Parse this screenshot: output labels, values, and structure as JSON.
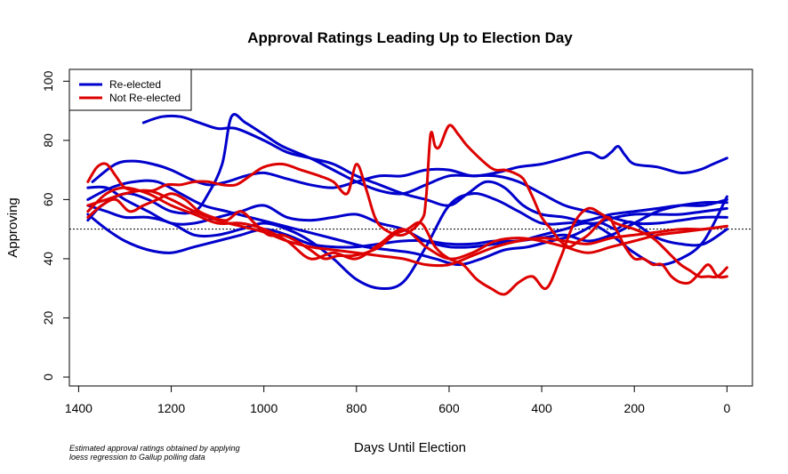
{
  "chart_data": {
    "type": "line",
    "title": "Approval Ratings Leading Up to Election Day",
    "xlabel": "Days Until Election",
    "ylabel": "Approving",
    "xlim": [
      1420,
      -55
    ],
    "ylim": [
      -3,
      104
    ],
    "x_ticks": [
      1400,
      1200,
      1000,
      800,
      600,
      400,
      200,
      0
    ],
    "y_ticks": [
      0,
      20,
      40,
      60,
      80,
      100
    ],
    "reference_line": {
      "y": 50,
      "style": "dotted"
    },
    "grid": false,
    "legend": {
      "position": "top-left",
      "entries": [
        {
          "label": "Re-elected",
          "color": "#0000cc"
        },
        {
          "label": "Not Re-elected",
          "color": "#dd0000"
        }
      ]
    },
    "series": [
      {
        "group": "Re-elected",
        "color": "#0000cc",
        "x": [
          1260,
          1220,
          1180,
          1140,
          1100,
          1060,
          1000,
          950,
          900,
          850,
          800,
          750,
          700,
          650,
          600,
          560,
          520,
          480,
          440,
          400,
          350,
          300,
          270,
          240,
          220,
          200,
          150,
          100,
          50,
          0
        ],
        "y": [
          86,
          88,
          88,
          86,
          84,
          84,
          80,
          76,
          74,
          72,
          68,
          65,
          62,
          60,
          58,
          62,
          66,
          64,
          58,
          55,
          54,
          52,
          52,
          50,
          52,
          52,
          47,
          45,
          45,
          50
        ]
      },
      {
        "group": "Re-elected",
        "color": "#0000cc",
        "x": [
          1380,
          1350,
          1300,
          1250,
          1200,
          1150,
          1120,
          1090,
          1070,
          1040,
          1000,
          960,
          900,
          850,
          800,
          750,
          700,
          650,
          600,
          550,
          500,
          450,
          400,
          350,
          300,
          250,
          200,
          150,
          100,
          50,
          0
        ],
        "y": [
          53,
          58,
          62,
          60,
          56,
          56,
          62,
          72,
          88,
          86,
          82,
          78,
          74,
          70,
          66,
          63,
          62,
          65,
          68,
          68,
          68,
          66,
          62,
          58,
          56,
          54,
          52,
          52,
          53,
          54,
          54
        ]
      },
      {
        "group": "Re-elected",
        "color": "#0000cc",
        "x": [
          1380,
          1340,
          1300,
          1250,
          1200,
          1150,
          1100,
          1050,
          1000,
          950,
          900,
          850,
          800,
          750,
          700,
          650,
          600,
          550,
          500,
          450,
          400,
          350,
          300,
          250,
          200,
          150,
          100,
          50,
          0
        ],
        "y": [
          64,
          64,
          60,
          56,
          52,
          52,
          54,
          56,
          58,
          54,
          53,
          54,
          55,
          52,
          50,
          46,
          44,
          44,
          45,
          46,
          47,
          48,
          46,
          48,
          52,
          56,
          58,
          59,
          59
        ]
      },
      {
        "group": "Re-elected",
        "color": "#0000cc",
        "x": [
          1380,
          1340,
          1300,
          1250,
          1200,
          1150,
          1100,
          1050,
          1000,
          950,
          900,
          850,
          800,
          750,
          700,
          650,
          600,
          550,
          500,
          450,
          400,
          350,
          300,
          250,
          200,
          150,
          100,
          50,
          0
        ],
        "y": [
          58,
          56,
          54,
          54,
          52,
          48,
          48,
          50,
          52,
          50,
          46,
          40,
          33,
          30,
          32,
          44,
          58,
          62,
          60,
          56,
          52,
          52,
          53,
          55,
          56,
          57,
          58,
          58,
          60
        ]
      },
      {
        "group": "Re-elected",
        "color": "#0000cc",
        "x": [
          1380,
          1340,
          1300,
          1250,
          1200,
          1150,
          1100,
          1050,
          1000,
          950,
          900,
          850,
          800,
          750,
          700,
          650,
          600,
          550,
          500,
          450,
          400,
          350,
          300,
          250,
          200,
          150,
          100,
          50,
          0
        ],
        "y": [
          55,
          50,
          46,
          43,
          42,
          44,
          46,
          48,
          50,
          48,
          45,
          44,
          44,
          45,
          46,
          46,
          45,
          45,
          46,
          46,
          48,
          50,
          52,
          48,
          42,
          38,
          40,
          46,
          61
        ]
      },
      {
        "group": "Re-elected",
        "color": "#0000cc",
        "x": [
          1380,
          1330,
          1280,
          1230,
          1180,
          1130,
          1080,
          1030,
          980,
          930,
          880,
          830,
          780,
          730,
          680,
          630,
          580,
          530,
          480,
          430,
          380,
          330,
          280,
          240,
          200,
          150,
          100,
          50,
          0
        ],
        "y": [
          60,
          64,
          66,
          66,
          62,
          58,
          56,
          54,
          52,
          50,
          48,
          46,
          44,
          43,
          42,
          40,
          38,
          40,
          43,
          44,
          46,
          48,
          52,
          54,
          55,
          55,
          55,
          56,
          57
        ]
      },
      {
        "group": "Re-elected",
        "color": "#0000cc",
        "x": [
          1370,
          1320,
          1280,
          1240,
          1200,
          1160,
          1120,
          1080,
          1040,
          1000,
          950,
          900,
          850,
          800,
          750,
          700,
          650,
          600,
          550,
          500,
          450,
          400,
          350,
          300,
          270,
          250,
          235,
          220,
          200,
          150,
          100,
          60,
          30,
          0
        ],
        "y": [
          66,
          72,
          73,
          72,
          70,
          67,
          65,
          66,
          68,
          69,
          67,
          65,
          64,
          66,
          68,
          68,
          70,
          70,
          68,
          69,
          71,
          72,
          74,
          76,
          74,
          76,
          78,
          75,
          72,
          71,
          69,
          70,
          72,
          74
        ]
      },
      {
        "group": "Not Re-elected",
        "color": "#dd0000",
        "x": [
          1380,
          1360,
          1340,
          1320,
          1300,
          1270,
          1240,
          1210,
          1180,
          1150,
          1120,
          1090,
          1060,
          1030,
          1000,
          960,
          920,
          880,
          850,
          820,
          800,
          780,
          760,
          740,
          700,
          660,
          650,
          640,
          630,
          620,
          600,
          580,
          560,
          520,
          500,
          480,
          460,
          440,
          420,
          400,
          380,
          360,
          340,
          320,
          300,
          260,
          240,
          220,
          200,
          180,
          160,
          140,
          120,
          100,
          80,
          60,
          40,
          20,
          0
        ],
        "y": [
          66,
          71,
          72,
          68,
          64,
          63,
          63,
          65,
          65,
          66,
          66,
          65,
          65,
          68,
          71,
          72,
          70,
          68,
          66,
          62,
          72,
          64,
          54,
          50,
          48,
          53,
          60,
          82,
          78,
          78,
          85,
          82,
          78,
          72,
          70,
          70,
          69,
          67,
          61,
          54,
          50,
          46,
          44,
          46,
          48,
          54,
          50,
          44,
          40,
          40,
          38,
          38,
          34,
          32,
          32,
          35,
          38,
          34,
          34
        ]
      },
      {
        "group": "Not Re-elected",
        "color": "#dd0000",
        "x": [
          1380,
          1350,
          1320,
          1290,
          1260,
          1230,
          1200,
          1170,
          1140,
          1110,
          1080,
          1050,
          1020,
          990,
          960,
          930,
          900,
          870,
          840,
          810,
          780,
          750,
          720,
          690,
          660,
          630,
          600,
          570,
          540,
          510,
          480,
          450,
          420,
          390,
          360,
          330,
          300,
          270,
          240,
          200,
          160,
          120,
          100,
          80,
          60,
          40,
          20,
          0
        ],
        "y": [
          54,
          58,
          60,
          56,
          58,
          60,
          62,
          60,
          56,
          54,
          53,
          56,
          52,
          48,
          48,
          46,
          43,
          40,
          41,
          41,
          42,
          44,
          48,
          50,
          52,
          44,
          40,
          38,
          33,
          30,
          28,
          32,
          34,
          30,
          40,
          52,
          57,
          55,
          52,
          50,
          47,
          41,
          38,
          36,
          34,
          34,
          34,
          37
        ]
      },
      {
        "group": "Not Re-elected",
        "color": "#dd0000",
        "x": [
          1380,
          1340,
          1300,
          1250,
          1200,
          1150,
          1100,
          1050,
          1000,
          950,
          900,
          850,
          800,
          750,
          700,
          650,
          600,
          550,
          500,
          450,
          400,
          350,
          300,
          250,
          200,
          150,
          100,
          50,
          0
        ],
        "y": [
          58,
          60,
          62,
          63,
          60,
          56,
          53,
          51,
          49,
          46,
          44,
          43,
          42,
          41,
          40,
          38,
          38,
          41,
          44,
          46,
          47,
          46,
          45,
          47,
          48,
          49,
          50,
          50,
          51
        ]
      },
      {
        "group": "Not Re-elected",
        "color": "#dd0000",
        "x": [
          1380,
          1340,
          1300,
          1250,
          1200,
          1150,
          1100,
          1050,
          1000,
          950,
          900,
          850,
          800,
          750,
          700,
          650,
          600,
          550,
          500,
          450,
          400,
          350,
          300,
          250,
          200,
          150,
          100,
          50,
          0
        ],
        "y": [
          56,
          62,
          64,
          62,
          58,
          55,
          52,
          52,
          50,
          46,
          40,
          42,
          40,
          45,
          50,
          44,
          40,
          42,
          46,
          47,
          46,
          44,
          42,
          44,
          46,
          48,
          49,
          50,
          51
        ]
      }
    ]
  },
  "note": "Estimated approval ratings obtained by applying\nloess regression to Gallup polling data"
}
